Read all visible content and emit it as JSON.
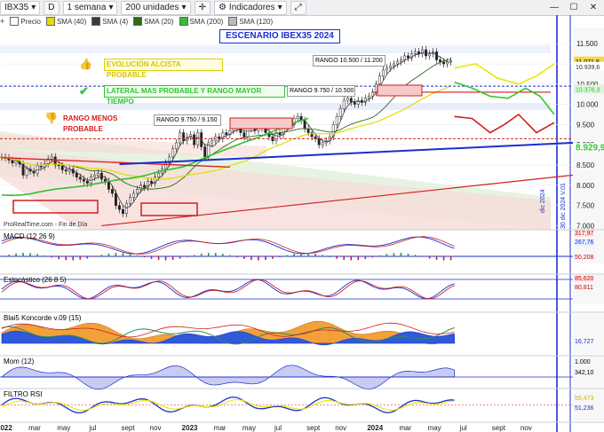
{
  "toolbar": {
    "symbol": "IBX35",
    "symbol_btn": "D",
    "period": "1 semana",
    "units": "200 unidades",
    "indicators": "Indicadores"
  },
  "legend": {
    "items": [
      {
        "label": "Precio",
        "color": "#222222"
      },
      {
        "label": "SMA (40)",
        "color": "#dede00"
      },
      {
        "label": "SMA (4)",
        "color": "#3a3a3a"
      },
      {
        "label": "SMA (20)",
        "color": "#2f6a1a"
      },
      {
        "label": "SMA (200)",
        "color": "#30c030"
      },
      {
        "label": "SMA (120)",
        "color": "#bbbbbb"
      }
    ]
  },
  "annotations": {
    "title": "ESCENARIO IBEX35 2024",
    "bull": "EVOLUCIÓN ALCISTA PROBABLE",
    "lateral": "LATERAL MAS PROBABLE Y RANGO MAYOR TIEMPO",
    "bear": "RANGO MENOS PROBABLE",
    "rango1": "RANGO 10.500 / 11.200",
    "rango2": "RANGO 9.750 / 10.500",
    "rango3": "RANGO 9.750 / 9.150",
    "vline1": "dic 2024",
    "vline2": "30 dic 2024 V.01",
    "source": "ProRealTime.com - Fin de Día"
  },
  "panels": {
    "macd": {
      "label": "MACD (12 26 9)",
      "values": [
        "317,97",
        "267,76",
        "50,208"
      ]
    },
    "stoch": {
      "label": "Estocástico (26 8 5)",
      "values": [
        "85,620",
        "80,811"
      ]
    },
    "koncorde": {
      "label": "Blai5 Koncorde v.09 (15)",
      "values": [
        "16,727"
      ]
    },
    "mom": {
      "label": "Mom (12)",
      "values": [
        "1.000",
        "342,10"
      ]
    },
    "rsi": {
      "label": "FILTRO RSI",
      "values": [
        "55,473",
        "51,236"
      ]
    }
  },
  "colors": {
    "bull": "#e8e800",
    "lateral": "#2ec72e",
    "bear": "#d21f1f",
    "blue": "#1a2fd0",
    "sma200": "#30c030",
    "sma40": "#dede00",
    "price_label": "#f3d94a"
  },
  "chart_data": {
    "type": "line",
    "ylim": [
      6900,
      11900
    ],
    "yticks": [
      7000,
      7500,
      8000,
      8500,
      9000,
      9500,
      10000,
      10500,
      11000,
      11500
    ],
    "ytick_labels": [
      "7.000",
      "7.500",
      "8.000",
      "8.500",
      "9.000",
      "9.500",
      "10.000",
      "10.500",
      "11.000",
      "11.500"
    ],
    "price_labels": [
      "11.071,8",
      "10.939,6",
      "10.376,3",
      "8.929,9"
    ],
    "x_axis_labels": [
      "2022",
      "mar",
      "may",
      "jul",
      "sept",
      "nov",
      "2023",
      "mar",
      "may",
      "jul",
      "sept",
      "nov",
      "2024",
      "mar",
      "may",
      "jul",
      "sept",
      "nov"
    ],
    "weeks": 155,
    "label_weeks": [
      0,
      9,
      17,
      26,
      35,
      43,
      52,
      61,
      69,
      78,
      87,
      95,
      104,
      113,
      121,
      130,
      139,
      147
    ],
    "last_week": 127,
    "closes": [
      8700,
      8680,
      8620,
      8550,
      8600,
      8520,
      8250,
      8400,
      8350,
      8300,
      8480,
      8450,
      8530,
      8650,
      8700,
      8500,
      8480,
      8380,
      8350,
      8400,
      8300,
      8200,
      8150,
      8100,
      8050,
      8200,
      8250,
      8300,
      8150,
      8100,
      7900,
      7800,
      7500,
      7400,
      7300,
      7550,
      7700,
      7800,
      7900,
      8000,
      7950,
      8100,
      8050,
      8200,
      8300,
      8400,
      8550,
      8700,
      8900,
      9050,
      9300,
      9100,
      9200,
      9250,
      9000,
      9300,
      8950,
      8700,
      9050,
      9100,
      9200,
      9150,
      9300,
      9250,
      9350,
      9400,
      9450,
      9300,
      9200,
      9400,
      9450,
      9350,
      9500,
      9400,
      9300,
      9200,
      9100,
      9300,
      9250,
      9400,
      9500,
      9500,
      9650,
      9700,
      9600,
      9400,
      9300,
      9200,
      9150,
      9000,
      9050,
      9100,
      9200,
      9500,
      9700,
      9900,
      10100,
      10150,
      10050,
      10000,
      10100,
      10050,
      10150,
      10200,
      10300,
      10500,
      10700,
      10850,
      10900,
      10950,
      11000,
      11050,
      11100,
      11200,
      11150,
      11250,
      11300,
      11250,
      11350,
      11200,
      11250,
      11300,
      11100,
      11050,
      11000,
      11050,
      11071.8
    ]
  }
}
